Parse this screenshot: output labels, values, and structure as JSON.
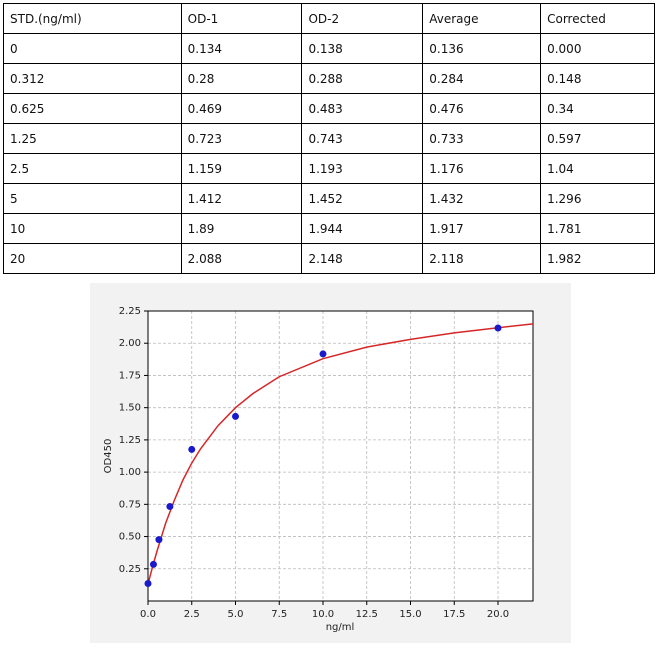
{
  "table": {
    "header": [
      "STD.(ng/ml)",
      "OD-1",
      "OD-2",
      "Average",
      "Corrected"
    ],
    "rows": [
      [
        "0",
        "0.134",
        "0.138",
        "0.136",
        "0.000"
      ],
      [
        "0.312",
        "0.28",
        "0.288",
        "0.284",
        "0.148"
      ],
      [
        "0.625",
        "0.469",
        "0.483",
        "0.476",
        "0.34"
      ],
      [
        "1.25",
        "0.723",
        "0.743",
        "0.733",
        "0.597"
      ],
      [
        "2.5",
        "1.159",
        "1.193",
        "1.176",
        "1.04"
      ],
      [
        "5",
        "1.412",
        "1.452",
        "1.432",
        "1.296"
      ],
      [
        "10",
        "1.89",
        "1.944",
        "1.917",
        "1.781"
      ],
      [
        "20",
        "2.088",
        "2.148",
        "2.118",
        "1.982"
      ]
    ]
  },
  "chart_data": {
    "type": "scatter",
    "x_label": "ng/ml",
    "y_label": "OD450",
    "xlim": [
      0,
      22
    ],
    "ylim": [
      0,
      2.25
    ],
    "xticks": [
      {
        "value": 0,
        "label": "0.0"
      },
      2.5,
      {
        "value": 5,
        "label": "5.0"
      },
      7.5,
      {
        "value": 10,
        "label": "10.0"
      },
      12.5,
      {
        "value": 15,
        "label": "15.0"
      },
      17.5,
      {
        "value": 20,
        "label": "20.0"
      }
    ],
    "yticks": [
      0.25,
      {
        "value": 0.5,
        "label": "0.50"
      },
      0.75,
      {
        "value": 1,
        "label": "1.00"
      },
      1.25,
      {
        "value": 1.5,
        "label": "1.50"
      },
      1.75,
      {
        "value": 2,
        "label": "2.00"
      },
      2.25
    ],
    "grid": true,
    "series": [
      {
        "kind": "line",
        "color": "#d62728",
        "x": [
          0,
          0.25,
          0.5,
          0.75,
          1,
          1.5,
          2,
          2.5,
          3,
          4,
          5,
          6,
          7.5,
          10,
          12.5,
          15,
          17.5,
          20,
          22
        ],
        "values": [
          0.13,
          0.26,
          0.38,
          0.49,
          0.6,
          0.78,
          0.94,
          1.07,
          1.18,
          1.36,
          1.5,
          1.61,
          1.74,
          1.88,
          1.97,
          2.03,
          2.08,
          2.12,
          2.15
        ]
      },
      {
        "kind": "points",
        "color": "#1a1acc",
        "x": [
          0,
          0.312,
          0.625,
          1.25,
          2.5,
          5,
          10,
          20
        ],
        "values": [
          0.136,
          0.284,
          0.476,
          0.733,
          1.176,
          1.432,
          1.917,
          2.118
        ]
      }
    ]
  }
}
